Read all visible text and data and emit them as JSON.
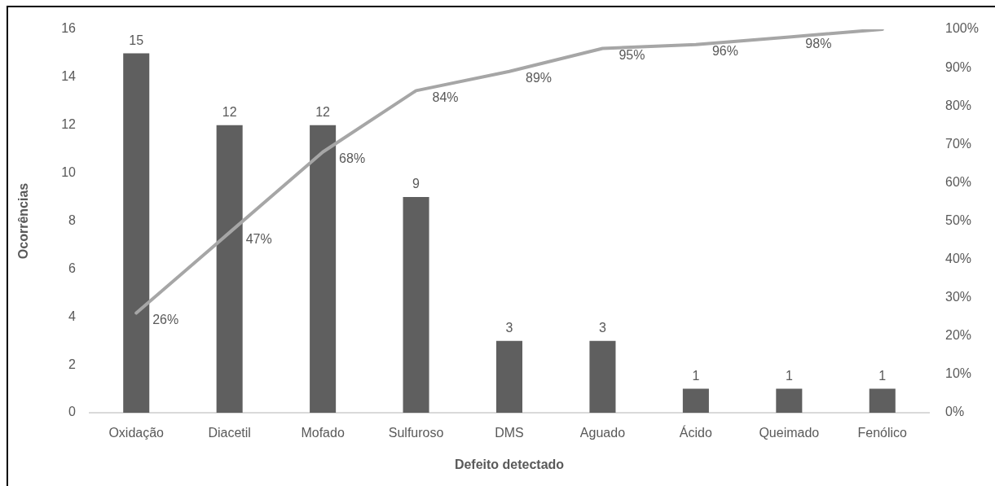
{
  "chart_data": {
    "type": "bar",
    "xlabel": "Defeito detectado",
    "ylabel": "Ocorrências",
    "categories": [
      "Oxidação",
      "Diacetil",
      "Mofado",
      "Sulfuroso",
      "DMS",
      "Aguado",
      "Ácido",
      "Queimado",
      "Fenólico"
    ],
    "series": [
      {
        "color": "#5f5f5f",
        "values": [
          15,
          12,
          12,
          9,
          3,
          3,
          1,
          1,
          1
        ],
        "value_labels": [
          "15",
          "12",
          "12",
          "9",
          "3",
          "3",
          "1",
          "1",
          "1"
        ]
      },
      {
        "type": "line",
        "axis": "y2",
        "color": "#a6a6a6",
        "values": [
          26,
          47,
          68,
          84,
          89,
          95,
          96,
          98,
          100
        ],
        "value_labels": [
          "26%",
          "47%",
          "68%",
          "84%",
          "89%",
          "95%",
          "96%",
          "98%",
          null
        ]
      }
    ],
    "ylim": [
      0,
      16
    ],
    "yticks": [
      0,
      2,
      4,
      6,
      8,
      10,
      12,
      14,
      16
    ],
    "y2lim": [
      0,
      100
    ],
    "y2ticks": [
      {
        "value": 0,
        "label": "0%"
      },
      {
        "value": 10,
        "label": "10%"
      },
      {
        "value": 20,
        "label": "20%"
      },
      {
        "value": 30,
        "label": "30%"
      },
      {
        "value": 40,
        "label": "40%"
      },
      {
        "value": 50,
        "label": "50%"
      },
      {
        "value": 60,
        "label": "60%"
      },
      {
        "value": 70,
        "label": "70%"
      },
      {
        "value": 80,
        "label": "80%"
      },
      {
        "value": 90,
        "label": "90%"
      },
      {
        "value": 100,
        "label": "100%"
      }
    ],
    "grid": false,
    "legend": false,
    "marker": "none",
    "line_style": "solid"
  }
}
